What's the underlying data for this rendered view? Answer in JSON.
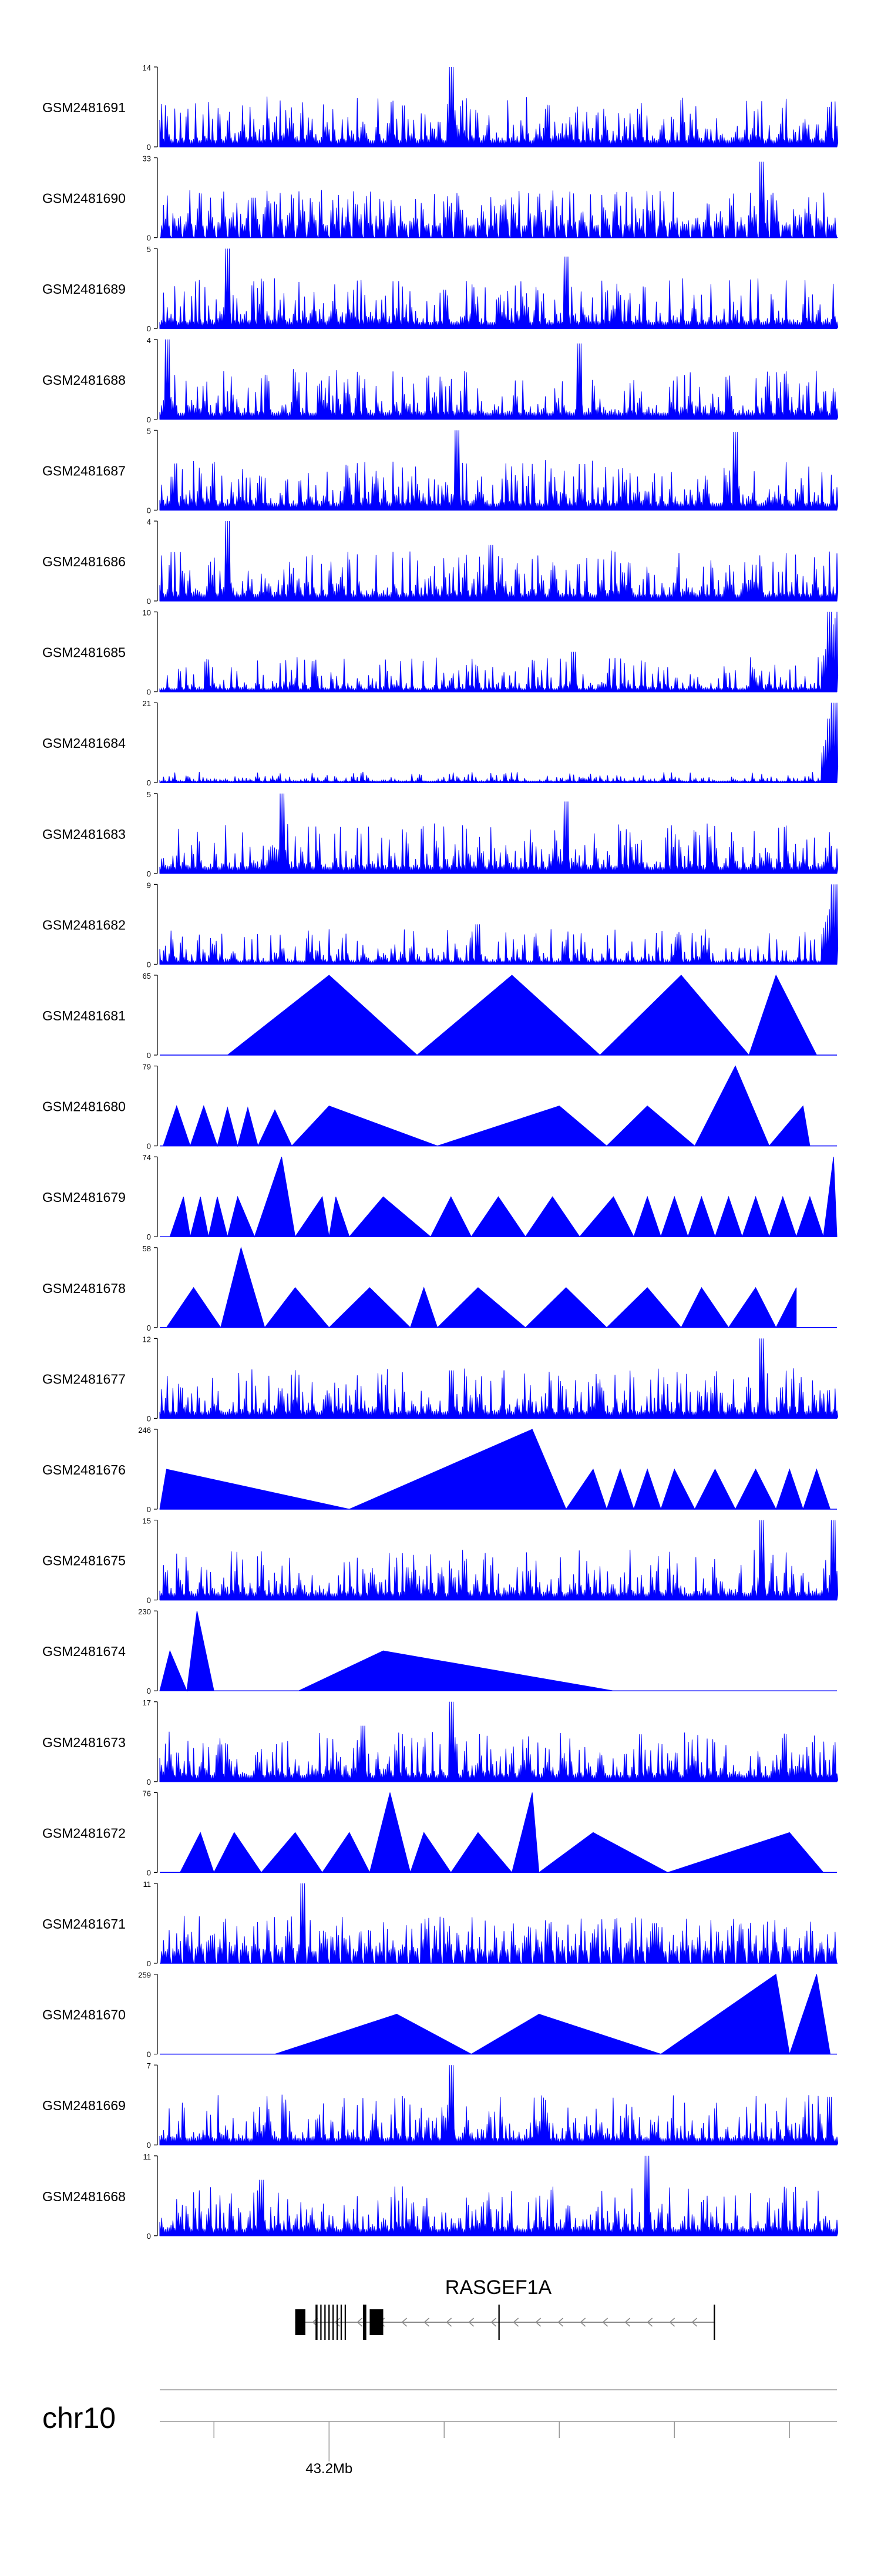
{
  "chart_data": {
    "type": "area",
    "fill_color": "#0000ff",
    "axis_color": "#000000",
    "tracks": [
      {
        "name": "GSM2481691",
        "ymax": "14",
        "ymin": "0",
        "shape": "noise",
        "seed": 91,
        "peaks": [
          [
            0.43,
            1.0
          ],
          [
            0.99,
            0.5
          ]
        ]
      },
      {
        "name": "GSM2481690",
        "ymax": "33",
        "ymin": "0",
        "shape": "noise_tri",
        "seed": 90,
        "peaks": [
          [
            0.89,
            0.95
          ],
          [
            0.14,
            0.5
          ]
        ]
      },
      {
        "name": "GSM2481689",
        "ymax": "5",
        "ymin": "0",
        "shape": "noise",
        "seed": 89,
        "peaks": [
          [
            0.1,
            1.0
          ],
          [
            0.6,
            0.9
          ]
        ]
      },
      {
        "name": "GSM2481688",
        "ymax": "4",
        "ymin": "0",
        "shape": "noise",
        "seed": 88,
        "peaks": [
          [
            0.01,
            1.0
          ],
          [
            0.62,
            0.95
          ]
        ]
      },
      {
        "name": "GSM2481687",
        "ymax": "5",
        "ymin": "0",
        "shape": "noise",
        "seed": 87,
        "peaks": [
          [
            0.44,
            1.0
          ],
          [
            0.85,
            0.98
          ]
        ]
      },
      {
        "name": "GSM2481686",
        "ymax": "4",
        "ymin": "0",
        "shape": "noise",
        "seed": 86,
        "peaks": [
          [
            0.1,
            1.0
          ],
          [
            0.49,
            0.7
          ]
        ]
      },
      {
        "name": "GSM2481685",
        "ymax": "10",
        "ymin": "0",
        "shape": "noise_end",
        "seed": 85,
        "peaks": [
          [
            0.99,
            1.0
          ],
          [
            0.61,
            0.5
          ]
        ]
      },
      {
        "name": "GSM2481684",
        "ymax": "21",
        "ymin": "0",
        "shape": "noise_end_low",
        "seed": 84,
        "peaks": [
          [
            0.995,
            1.0
          ],
          [
            0.99,
            0.8
          ]
        ]
      },
      {
        "name": "GSM2481683",
        "ymax": "5",
        "ymin": "0",
        "shape": "noise",
        "seed": 83,
        "peaks": [
          [
            0.18,
            1.0
          ],
          [
            0.6,
            0.9
          ]
        ]
      },
      {
        "name": "GSM2481682",
        "ymax": "9",
        "ymin": "0",
        "shape": "noise_end",
        "seed": 82,
        "peaks": [
          [
            0.995,
            1.0
          ],
          [
            0.47,
            0.5
          ]
        ]
      },
      {
        "name": "GSM2481681",
        "ymax": "65",
        "ymin": "0",
        "shape": "triangles",
        "x": [
          0.05,
          0.1,
          0.25,
          0.38,
          0.52,
          0.65,
          0.77,
          0.87,
          0.91,
          0.97,
          0.98
        ],
        "y": [
          0,
          0,
          1.0,
          0,
          1.0,
          0,
          1.0,
          0,
          1.0,
          0,
          0
        ]
      },
      {
        "name": "GSM2481680",
        "ymax": "79",
        "ymin": "0",
        "shape": "triangles",
        "x": [
          0.0,
          0.005,
          0.025,
          0.045,
          0.065,
          0.085,
          0.1,
          0.115,
          0.13,
          0.145,
          0.17,
          0.195,
          0.25,
          0.41,
          0.59,
          0.66,
          0.72,
          0.79,
          0.85,
          0.9,
          0.95,
          0.96
        ],
        "y": [
          0,
          0,
          0.5,
          0,
          0.5,
          0,
          0.48,
          0,
          0.48,
          0,
          0.45,
          0,
          0.5,
          0,
          0.5,
          0,
          0.5,
          0,
          1.0,
          0,
          0.5,
          0
        ]
      },
      {
        "name": "GSM2481679",
        "ymax": "74",
        "ymin": "0",
        "shape": "triangles",
        "x": [
          0.0,
          0.015,
          0.035,
          0.045,
          0.06,
          0.072,
          0.085,
          0.1,
          0.115,
          0.14,
          0.18,
          0.2,
          0.24,
          0.25,
          0.26,
          0.28,
          0.33,
          0.4,
          0.43,
          0.46,
          0.5,
          0.54,
          0.58,
          0.62,
          0.67,
          0.7,
          0.72,
          0.74,
          0.76,
          0.78,
          0.8,
          0.82,
          0.84,
          0.86,
          0.88,
          0.9,
          0.92,
          0.94,
          0.96,
          0.98,
          0.995,
          1.0
        ],
        "y": [
          0,
          0,
          0.5,
          0,
          0.5,
          0,
          0.5,
          0,
          0.5,
          0,
          1.0,
          0,
          0.5,
          0,
          0.5,
          0,
          0.5,
          0,
          0.5,
          0,
          0.5,
          0,
          0.5,
          0,
          0.5,
          0,
          0.5,
          0,
          0.5,
          0,
          0.5,
          0,
          0.5,
          0,
          0.5,
          0,
          0.5,
          0,
          0.5,
          0,
          1.0,
          0
        ]
      },
      {
        "name": "GSM2481678",
        "ymax": "58",
        "ymin": "0",
        "shape": "triangles",
        "x": [
          0.0,
          0.01,
          0.05,
          0.09,
          0.12,
          0.155,
          0.2,
          0.25,
          0.31,
          0.37,
          0.39,
          0.41,
          0.47,
          0.54,
          0.6,
          0.66,
          0.72,
          0.77,
          0.8,
          0.84,
          0.88,
          0.91,
          0.94
        ],
        "y": [
          0,
          0,
          0.5,
          0,
          1.0,
          0,
          0.5,
          0,
          0.5,
          0,
          0.5,
          0,
          0.5,
          0,
          0.5,
          0,
          0.5,
          0,
          0.5,
          0,
          0.5,
          0,
          0.5
        ]
      },
      {
        "name": "GSM2481677",
        "ymax": "12",
        "ymin": "0",
        "shape": "noise",
        "seed": 77,
        "peaks": [
          [
            0.89,
            1.0
          ],
          [
            0.43,
            0.6
          ]
        ]
      },
      {
        "name": "GSM2481676",
        "ymax": "246",
        "ymin": "0",
        "shape": "triangles",
        "x": [
          0.0,
          0.01,
          0.28,
          0.55,
          0.6,
          0.64,
          0.66,
          0.68,
          0.7,
          0.72,
          0.74,
          0.76,
          0.79,
          0.82,
          0.85,
          0.88,
          0.91,
          0.93,
          0.95,
          0.97,
          0.99,
          1.0
        ],
        "y": [
          0,
          0.5,
          0,
          1.0,
          0,
          0.5,
          0,
          0.5,
          0,
          0.5,
          0,
          0.5,
          0,
          0.5,
          0,
          0.5,
          0,
          0.5,
          0,
          0.5,
          0,
          0
        ]
      },
      {
        "name": "GSM2481675",
        "ymax": "15",
        "ymin": "0",
        "shape": "noise",
        "seed": 75,
        "peaks": [
          [
            0.89,
            1.0
          ],
          [
            0.995,
            1.0
          ]
        ]
      },
      {
        "name": "GSM2481674",
        "ymax": "230",
        "ymin": "0",
        "shape": "triangles",
        "x": [
          0.0,
          0.015,
          0.04,
          0.055,
          0.08,
          0.205,
          0.33,
          0.67
        ],
        "y": [
          0,
          0.5,
          0,
          1.0,
          0,
          0,
          0.5,
          0
        ]
      },
      {
        "name": "GSM2481673",
        "ymax": "17",
        "ymin": "0",
        "shape": "noise",
        "seed": 73,
        "peaks": [
          [
            0.43,
            1.0
          ],
          [
            0.3,
            0.7
          ]
        ]
      },
      {
        "name": "GSM2481672",
        "ymax": "76",
        "ymin": "0",
        "shape": "triangles",
        "x": [
          0.0,
          0.03,
          0.06,
          0.08,
          0.11,
          0.15,
          0.2,
          0.24,
          0.28,
          0.31,
          0.34,
          0.37,
          0.39,
          0.43,
          0.47,
          0.52,
          0.55,
          0.56,
          0.64,
          0.75,
          0.93,
          0.98
        ],
        "y": [
          0,
          0,
          0.5,
          0,
          0.5,
          0,
          0.5,
          0,
          0.5,
          0,
          1.0,
          0,
          0.5,
          0,
          0.5,
          0,
          1.0,
          0,
          0.5,
          0,
          0.5,
          0
        ]
      },
      {
        "name": "GSM2481671",
        "ymax": "11",
        "ymin": "0",
        "shape": "noise_tri",
        "seed": 71,
        "peaks": [
          [
            0.21,
            1.0
          ],
          [
            0.73,
            0.5
          ]
        ]
      },
      {
        "name": "GSM2481670",
        "ymax": "259",
        "ymin": "0",
        "shape": "triangles",
        "x": [
          0.17,
          0.35,
          0.46,
          0.56,
          0.74,
          0.91,
          0.93,
          0.95,
          0.97,
          0.99
        ],
        "y": [
          0,
          0.5,
          0,
          0.5,
          0,
          1.0,
          0,
          0.5,
          1.0,
          0
        ]
      },
      {
        "name": "GSM2481669",
        "ymax": "7",
        "ymin": "0",
        "shape": "noise",
        "seed": 69,
        "peaks": [
          [
            0.43,
            1.0
          ],
          [
            0.99,
            0.6
          ]
        ]
      },
      {
        "name": "GSM2481668",
        "ymax": "11",
        "ymin": "0",
        "shape": "noise",
        "seed": 68,
        "peaks": [
          [
            0.72,
            1.0
          ],
          [
            0.15,
            0.7
          ]
        ]
      }
    ],
    "gene": {
      "name": "RASGEF1A",
      "strand": "-",
      "start_frac": 0.2,
      "end_frac": 0.82,
      "exons": [
        [
          0.2,
          0.215
        ],
        [
          0.23,
          0.233
        ],
        [
          0.237,
          0.239
        ],
        [
          0.243,
          0.245
        ],
        [
          0.249,
          0.251
        ],
        [
          0.255,
          0.257
        ],
        [
          0.261,
          0.263
        ],
        [
          0.267,
          0.269
        ],
        [
          0.273,
          0.275
        ],
        [
          0.3,
          0.305
        ],
        [
          0.31,
          0.33
        ],
        [
          0.5,
          0.502
        ],
        [
          0.818,
          0.82
        ]
      ]
    },
    "axis": {
      "chromosome": "chr10",
      "tick_label": "43.2Mb",
      "tick_label_frac": 0.25,
      "tick_fracs": [
        0.08,
        0.25,
        0.42,
        0.59,
        0.76,
        0.93
      ]
    }
  }
}
